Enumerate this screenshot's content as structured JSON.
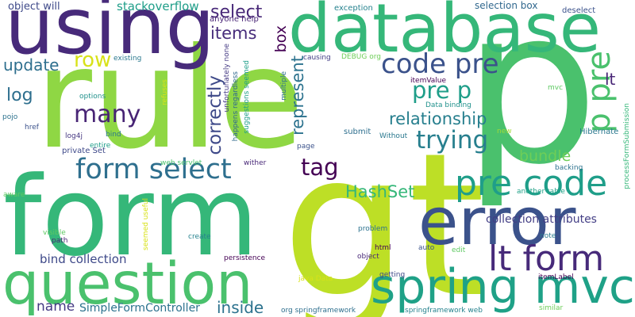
{
  "words": [
    {
      "text": "rule",
      "color": "#8fd744"
    },
    {
      "text": "p",
      "color": "#4ac16d"
    },
    {
      "text": "form",
      "color": "#35b779"
    },
    {
      "text": "gt",
      "color": "#bddf26"
    },
    {
      "text": "using",
      "color": "#472a7a"
    },
    {
      "text": "database",
      "color": "#35b779"
    },
    {
      "text": "error",
      "color": "#3b528b"
    },
    {
      "text": "question",
      "color": "#4ac16d"
    },
    {
      "text": "spring mvc",
      "color": "#1fa187"
    },
    {
      "text": "lt form",
      "color": "#472a7a"
    },
    {
      "text": "pre code",
      "color": "#1f9e89"
    },
    {
      "text": "form select",
      "color": "#2e6f8e"
    },
    {
      "text": "code pre",
      "color": "#3b528b"
    },
    {
      "text": "pre p",
      "color": "#1f9e89"
    },
    {
      "text": "p pre",
      "color": "#4ac16d"
    },
    {
      "text": "many",
      "color": "#482475"
    },
    {
      "text": "trying",
      "color": "#277f8e"
    },
    {
      "text": "update",
      "color": "#2e6f8e"
    },
    {
      "text": "row",
      "color": "#d8e219"
    },
    {
      "text": "tag",
      "color": "#440154"
    },
    {
      "text": "select",
      "color": "#482878"
    },
    {
      "text": "items",
      "color": "#472d7b"
    },
    {
      "text": "log",
      "color": "#2e6f8e"
    },
    {
      "text": "relationship",
      "color": "#277f8e"
    },
    {
      "text": "correctly",
      "color": "#3e4989"
    },
    {
      "text": "represent",
      "color": "#2c728e"
    },
    {
      "text": "box",
      "color": "#440154"
    },
    {
      "text": "lt",
      "color": "#482576"
    },
    {
      "text": "HashSet",
      "color": "#35b779"
    },
    {
      "text": "bundle",
      "color": "#6ece58"
    },
    {
      "text": "inside",
      "color": "#2c728e"
    },
    {
      "text": "name",
      "color": "#443983"
    },
    {
      "text": "stackoverflow",
      "color": "#1f9e89"
    },
    {
      "text": "collection attributes",
      "color": "#433e85"
    },
    {
      "text": "bind collection",
      "color": "#3e4989"
    },
    {
      "text": "SimpleFormController",
      "color": "#2c728e"
    },
    {
      "text": "object will",
      "color": "#3e4989"
    },
    {
      "text": "selection box",
      "color": "#31688e"
    },
    {
      "text": "deselect",
      "color": "#3b528b"
    },
    {
      "text": "exception",
      "color": "#26828e"
    },
    {
      "text": "anyone help",
      "color": "#482475"
    },
    {
      "text": "existing",
      "color": "#2a788e"
    },
    {
      "text": "causing",
      "color": "#433e85"
    },
    {
      "text": "DEBUG org",
      "color": "#6ece58"
    },
    {
      "text": "itemValue",
      "color": "#440154"
    },
    {
      "text": "Data binding",
      "color": "#21918c"
    },
    {
      "text": "mvc",
      "color": "#5ec962"
    },
    {
      "text": "Hibernate",
      "color": "#2a788e"
    },
    {
      "text": "processFormSubmission",
      "color": "#35b779"
    },
    {
      "text": "backing",
      "color": "#2c728e"
    },
    {
      "text": "another table",
      "color": "#1fa187"
    },
    {
      "text": "note",
      "color": "#287c8e"
    },
    {
      "text": "new",
      "color": "#a0da39"
    },
    {
      "text": "Without",
      "color": "#2a788e"
    },
    {
      "text": "submit",
      "color": "#2e6f8e"
    },
    {
      "text": "page",
      "color": "#3b528b"
    },
    {
      "text": "wither",
      "color": "#482878"
    },
    {
      "text": "web servlet",
      "color": "#4ac16d"
    },
    {
      "text": "entire",
      "color": "#1f9e89"
    },
    {
      "text": "private Set",
      "color": "#3e4989"
    },
    {
      "text": "bind",
      "color": "#2a788e"
    },
    {
      "text": "log4j",
      "color": "#453781"
    },
    {
      "text": "options",
      "color": "#21918c"
    },
    {
      "text": "pojo",
      "color": "#2c728e"
    },
    {
      "text": "href",
      "color": "#3b528b"
    },
    {
      "text": "aware",
      "color": "#5ec962"
    },
    {
      "text": "visible",
      "color": "#5ec962"
    },
    {
      "text": "path",
      "color": "#482878"
    },
    {
      "text": "seemed useful",
      "color": "#d8e219"
    },
    {
      "text": "create",
      "color": "#26828e"
    },
    {
      "text": "persistence",
      "color": "#440154"
    },
    {
      "text": "problem",
      "color": "#2c728e"
    },
    {
      "text": "html",
      "color": "#440154"
    },
    {
      "text": "object",
      "color": "#482878"
    },
    {
      "text": "auto",
      "color": "#3b528b"
    },
    {
      "text": "edit",
      "color": "#5ec962"
    },
    {
      "text": "getting",
      "color": "#3e4989"
    },
    {
      "text": "java Data",
      "color": "#d8e219"
    },
    {
      "text": "org springframework",
      "color": "#2e6f8e"
    },
    {
      "text": "springframework web",
      "color": "#26828e"
    },
    {
      "text": "itemLabel",
      "color": "#440154"
    },
    {
      "text": "similar",
      "color": "#6ece58"
    },
    {
      "text": "refuses",
      "color": "#d8e219"
    },
    {
      "text": "unfortunately none",
      "color": "#443983"
    },
    {
      "text": "happens regardless",
      "color": "#31688e"
    },
    {
      "text": "suggestions seemed",
      "color": "#1f9e89"
    },
    {
      "text": "multiple",
      "color": "#2e6f8e"
    }
  ]
}
